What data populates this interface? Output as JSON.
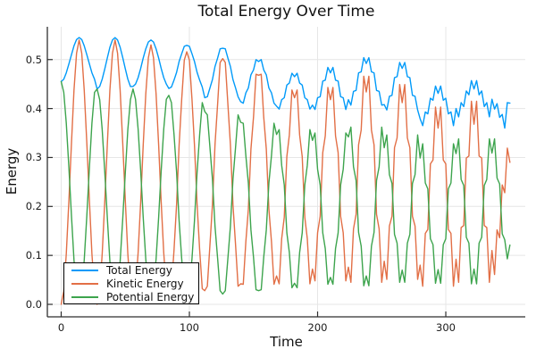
{
  "chart_data": {
    "type": "line",
    "title": "Total Energy Over Time",
    "xlabel": "Time",
    "ylabel": "Energy",
    "xlim": [
      -10.8,
      362
    ],
    "ylim": [
      -0.0255,
      0.567
    ],
    "xticks": [
      0,
      100,
      200,
      300
    ],
    "xtick_labels": [
      "0",
      "100",
      "200",
      "300"
    ],
    "yticks": [
      0.0,
      0.1,
      0.2,
      0.3,
      0.4,
      0.5
    ],
    "ytick_labels": [
      "0.0",
      "0.1",
      "0.2",
      "0.3",
      "0.4",
      "0.5"
    ],
    "grid": true,
    "legend_position": "bottom-left",
    "x_start": 0,
    "x_step": 2,
    "colors": {
      "grid": "#e6e6e6",
      "spine": "#2f2f2f",
      "text": "#111111"
    },
    "series": [
      {
        "name": "Total Energy",
        "color": "#009af9",
        "values": [
          0.455,
          0.46,
          0.473,
          0.491,
          0.51,
          0.528,
          0.541,
          0.545,
          0.541,
          0.528,
          0.51,
          0.491,
          0.473,
          0.46,
          0.44,
          0.445,
          0.46,
          0.481,
          0.504,
          0.525,
          0.54,
          0.545,
          0.54,
          0.525,
          0.504,
          0.481,
          0.46,
          0.445,
          0.445,
          0.45,
          0.463,
          0.482,
          0.503,
          0.522,
          0.536,
          0.54,
          0.536,
          0.522,
          0.503,
          0.482,
          0.463,
          0.45,
          0.441,
          0.444,
          0.458,
          0.474,
          0.496,
          0.512,
          0.527,
          0.529,
          0.527,
          0.512,
          0.496,
          0.474,
          0.458,
          0.444,
          0.422,
          0.424,
          0.442,
          0.459,
          0.486,
          0.503,
          0.522,
          0.523,
          0.522,
          0.503,
          0.486,
          0.459,
          0.442,
          0.424,
          0.414,
          0.411,
          0.432,
          0.442,
          0.469,
          0.479,
          0.5,
          0.496,
          0.5,
          0.479,
          0.469,
          0.442,
          0.432,
          0.411,
          0.405,
          0.399,
          0.418,
          0.422,
          0.448,
          0.452,
          0.472,
          0.465,
          0.472,
          0.452,
          0.448,
          0.422,
          0.418,
          0.399,
          0.407,
          0.398,
          0.422,
          0.424,
          0.456,
          0.458,
          0.484,
          0.473,
          0.484,
          0.458,
          0.456,
          0.424,
          0.422,
          0.398,
          0.418,
          0.407,
          0.435,
          0.437,
          0.473,
          0.475,
          0.504,
          0.492,
          0.504,
          0.475,
          0.473,
          0.437,
          0.435,
          0.407,
          0.408,
          0.397,
          0.425,
          0.427,
          0.463,
          0.465,
          0.494,
          0.482,
          0.494,
          0.465,
          0.463,
          0.427,
          0.425,
          0.397,
          0.379,
          0.365,
          0.393,
          0.389,
          0.421,
          0.417,
          0.446,
          0.431,
          0.446,
          0.417,
          0.421,
          0.389,
          0.393,
          0.365,
          0.4,
          0.383,
          0.412,
          0.404,
          0.436,
          0.428,
          0.457,
          0.44,
          0.457,
          0.428,
          0.436,
          0.404,
          0.412,
          0.383,
          0.419,
          0.399,
          0.41,
          0.382,
          0.388,
          0.36,
          0.412,
          0.411
        ]
      },
      {
        "name": "Kinetic Energy",
        "color": "#e26f46",
        "values": [
          0.0,
          0.027,
          0.103,
          0.211,
          0.329,
          0.437,
          0.513,
          0.54,
          0.513,
          0.437,
          0.329,
          0.211,
          0.103,
          0.027,
          0.0,
          0.027,
          0.103,
          0.211,
          0.329,
          0.437,
          0.513,
          0.54,
          0.513,
          0.437,
          0.329,
          0.211,
          0.103,
          0.027,
          0.005,
          0.031,
          0.105,
          0.21,
          0.325,
          0.43,
          0.504,
          0.53,
          0.504,
          0.43,
          0.325,
          0.21,
          0.105,
          0.031,
          0.014,
          0.032,
          0.111,
          0.205,
          0.325,
          0.419,
          0.499,
          0.516,
          0.499,
          0.419,
          0.325,
          0.205,
          0.111,
          0.032,
          0.028,
          0.037,
          0.121,
          0.203,
          0.327,
          0.409,
          0.494,
          0.502,
          0.494,
          0.409,
          0.327,
          0.203,
          0.121,
          0.037,
          0.042,
          0.041,
          0.128,
          0.194,
          0.317,
          0.383,
          0.47,
          0.468,
          0.47,
          0.383,
          0.317,
          0.194,
          0.128,
          0.041,
          0.058,
          0.042,
          0.134,
          0.178,
          0.302,
          0.346,
          0.438,
          0.422,
          0.438,
          0.346,
          0.302,
          0.178,
          0.134,
          0.042,
          0.072,
          0.048,
          0.146,
          0.18,
          0.31,
          0.344,
          0.443,
          0.418,
          0.443,
          0.344,
          0.31,
          0.18,
          0.146,
          0.048,
          0.076,
          0.045,
          0.154,
          0.184,
          0.326,
          0.356,
          0.466,
          0.434,
          0.466,
          0.356,
          0.326,
          0.184,
          0.154,
          0.045,
          0.088,
          0.051,
          0.16,
          0.18,
          0.32,
          0.34,
          0.449,
          0.412,
          0.449,
          0.34,
          0.32,
          0.18,
          0.16,
          0.051,
          0.08,
          0.037,
          0.145,
          0.153,
          0.287,
          0.295,
          0.403,
          0.36,
          0.403,
          0.295,
          0.287,
          0.153,
          0.145,
          0.037,
          0.092,
          0.045,
          0.157,
          0.161,
          0.299,
          0.303,
          0.415,
          0.368,
          0.415,
          0.303,
          0.299,
          0.161,
          0.157,
          0.045,
          0.11,
          0.061,
          0.152,
          0.136,
          0.244,
          0.228,
          0.319,
          0.29
        ]
      },
      {
        "name": "Potential Energy",
        "color": "#3da44d",
        "values": [
          0.455,
          0.433,
          0.37,
          0.28,
          0.181,
          0.091,
          0.028,
          0.005,
          0.028,
          0.091,
          0.181,
          0.28,
          0.37,
          0.433,
          0.44,
          0.418,
          0.357,
          0.27,
          0.175,
          0.088,
          0.027,
          0.005,
          0.027,
          0.088,
          0.175,
          0.27,
          0.357,
          0.418,
          0.44,
          0.419,
          0.358,
          0.272,
          0.178,
          0.092,
          0.032,
          0.01,
          0.032,
          0.092,
          0.178,
          0.272,
          0.358,
          0.419,
          0.427,
          0.412,
          0.347,
          0.269,
          0.171,
          0.093,
          0.028,
          0.013,
          0.028,
          0.093,
          0.171,
          0.269,
          0.347,
          0.412,
          0.394,
          0.387,
          0.321,
          0.256,
          0.159,
          0.094,
          0.028,
          0.021,
          0.028,
          0.094,
          0.159,
          0.256,
          0.321,
          0.387,
          0.372,
          0.37,
          0.304,
          0.248,
          0.152,
          0.096,
          0.03,
          0.028,
          0.03,
          0.096,
          0.152,
          0.248,
          0.304,
          0.37,
          0.347,
          0.357,
          0.284,
          0.244,
          0.146,
          0.106,
          0.034,
          0.043,
          0.034,
          0.106,
          0.146,
          0.244,
          0.284,
          0.357,
          0.335,
          0.35,
          0.276,
          0.244,
          0.146,
          0.114,
          0.041,
          0.055,
          0.041,
          0.114,
          0.146,
          0.244,
          0.276,
          0.35,
          0.342,
          0.362,
          0.281,
          0.253,
          0.147,
          0.119,
          0.038,
          0.058,
          0.038,
          0.119,
          0.147,
          0.253,
          0.281,
          0.362,
          0.32,
          0.346,
          0.265,
          0.247,
          0.143,
          0.125,
          0.045,
          0.07,
          0.045,
          0.125,
          0.143,
          0.247,
          0.265,
          0.346,
          0.299,
          0.328,
          0.248,
          0.236,
          0.134,
          0.122,
          0.043,
          0.071,
          0.043,
          0.122,
          0.134,
          0.236,
          0.248,
          0.328,
          0.308,
          0.338,
          0.255,
          0.243,
          0.137,
          0.125,
          0.042,
          0.072,
          0.042,
          0.125,
          0.137,
          0.243,
          0.255,
          0.338,
          0.309,
          0.338,
          0.258,
          0.246,
          0.144,
          0.132,
          0.093,
          0.121
        ]
      }
    ]
  }
}
